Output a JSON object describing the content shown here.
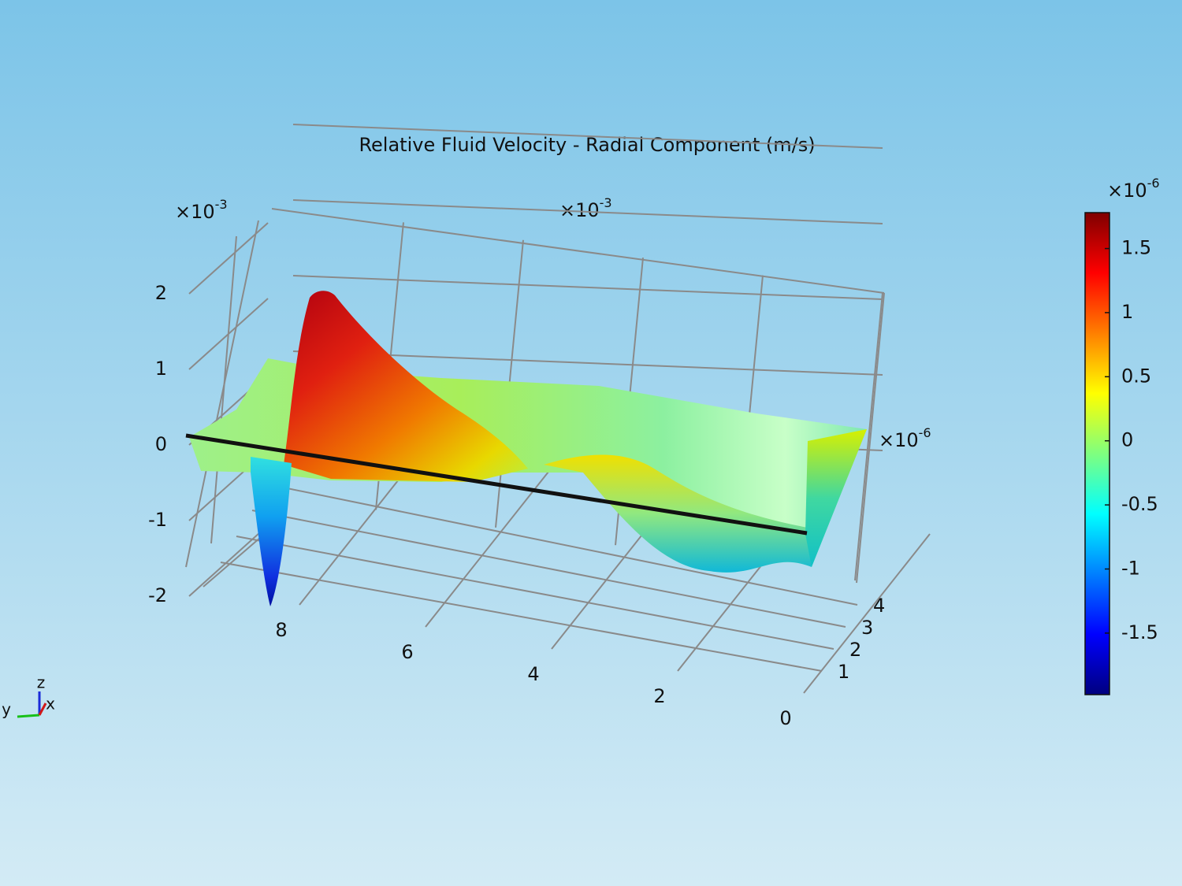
{
  "chart_data": {
    "type": "surface3d",
    "title": "Relative Fluid Velocity - Radial Component (m/s)",
    "x_multiplier": {
      "base": "×10",
      "exp": "-3"
    },
    "y_multiplier": {
      "base": "×10",
      "exp": "-6"
    },
    "z_multiplier": {
      "base": "×10",
      "exp": "-3"
    },
    "xlim": [
      0,
      9.5
    ],
    "xticks": [
      0,
      2,
      4,
      6,
      8
    ],
    "ylim": [
      0,
      4
    ],
    "yticks": [
      1,
      2,
      3,
      4
    ],
    "zlim": [
      -2,
      2
    ],
    "zticks": [
      -2,
      -1,
      0,
      1,
      2
    ],
    "grid": true,
    "colorbar": {
      "colormap": "jet",
      "lim": [
        -1.98,
        1.78
      ],
      "ticks": [
        -1.5,
        -1,
        -0.5,
        0,
        0.5,
        1,
        1.5
      ],
      "multiplier": {
        "base": "×10",
        "exp": "-6"
      }
    },
    "triad": {
      "x": "x",
      "y": "y",
      "z": "z"
    }
  }
}
